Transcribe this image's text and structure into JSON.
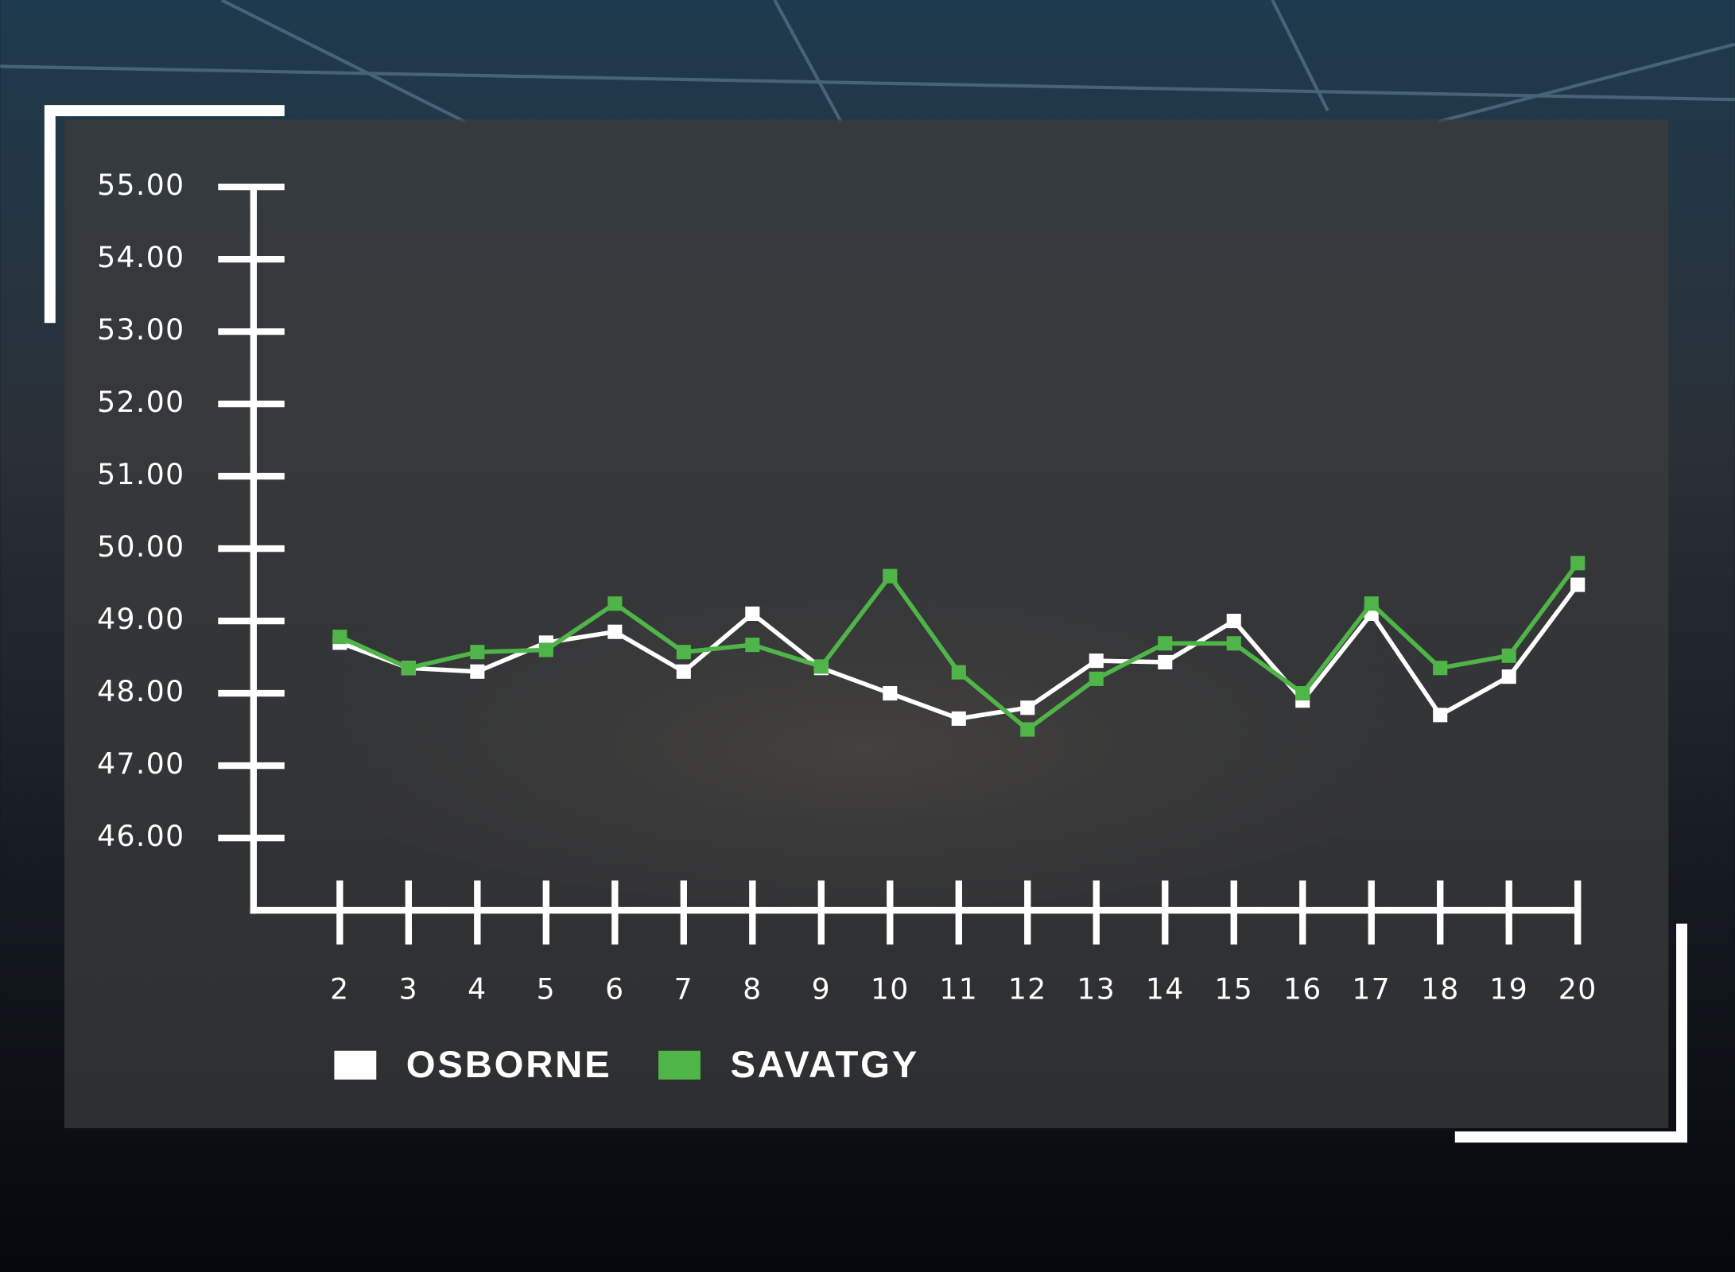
{
  "chart_data": {
    "type": "line",
    "categories": [
      "2",
      "3",
      "4",
      "5",
      "6",
      "7",
      "8",
      "9",
      "10",
      "11",
      "12",
      "13",
      "14",
      "15",
      "16",
      "17",
      "18",
      "19",
      "20"
    ],
    "series": [
      {
        "name": "OSBORNE",
        "color": "#ffffff",
        "values": [
          48.7,
          48.35,
          48.3,
          48.7,
          48.85,
          48.3,
          49.1,
          48.35,
          48.0,
          47.65,
          47.8,
          48.45,
          48.43,
          49.0,
          47.9,
          49.1,
          47.7,
          48.23,
          49.5
        ]
      },
      {
        "name": "SAVATGY",
        "color": "#4fb548",
        "values": [
          48.78,
          48.35,
          48.57,
          48.6,
          49.24,
          48.57,
          48.67,
          48.37,
          49.62,
          48.29,
          47.5,
          48.2,
          48.69,
          48.69,
          48.0,
          49.24,
          48.35,
          48.52,
          49.8
        ]
      }
    ],
    "ylim": [
      45,
      55
    ],
    "yticks": [
      {
        "value": 46,
        "label": "46.00"
      },
      {
        "value": 47,
        "label": "47.00"
      },
      {
        "value": 48,
        "label": "48.00"
      },
      {
        "value": 49,
        "label": "49.00"
      },
      {
        "value": 50,
        "label": "50.00"
      },
      {
        "value": 51,
        "label": "51.00"
      },
      {
        "value": 52,
        "label": "52.00"
      },
      {
        "value": 53,
        "label": "53.00"
      },
      {
        "value": 54,
        "label": "54.00"
      },
      {
        "value": 55,
        "label": "55.00"
      }
    ],
    "legend": "bottom-left"
  }
}
